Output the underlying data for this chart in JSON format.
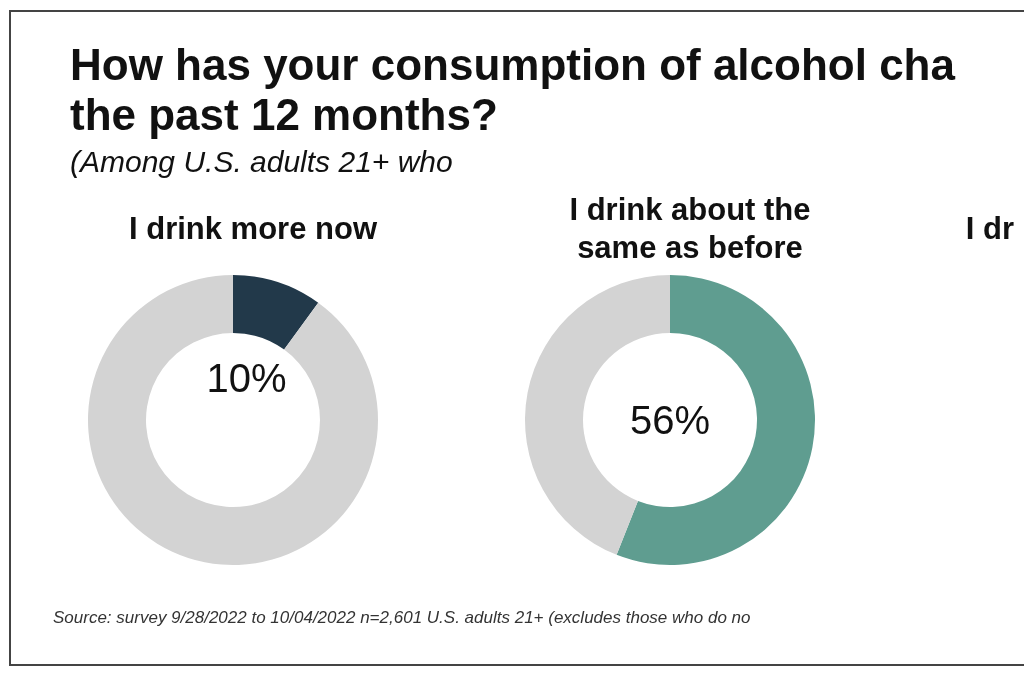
{
  "chart_data": [
    {
      "type": "other",
      "title": "How has your consumption of alcohol cha\nthe past 12 months?",
      "subtitle": "(Among U.S. adults 21+ who",
      "annotations": [
        "Source: survey 9/28/2022 to 10/04/2022 n=2,601 U.S. adults 21+ (excludes those who do no"
      ]
    },
    {
      "type": "donut",
      "title": "I drink more now",
      "categories": [
        null,
        null
      ],
      "values": [
        10,
        90
      ],
      "colors": [
        "#22394a",
        "#d3d3d3"
      ],
      "value_labels": [
        "10%",
        null
      ]
    },
    {
      "type": "donut",
      "title": "I drink about the same as before",
      "categories": [
        null,
        null
      ],
      "values": [
        56,
        44
      ],
      "colors": [
        "#5f9d90",
        "#d3d3d3"
      ],
      "value_labels": [
        "56%",
        null
      ]
    },
    {
      "type": "other",
      "title": "I dr"
    }
  ]
}
